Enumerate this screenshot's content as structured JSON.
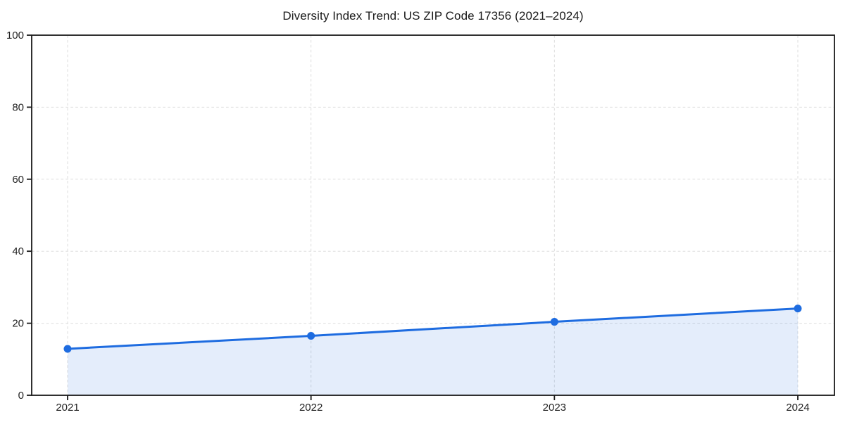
{
  "page": {
    "background": "#ffffff"
  },
  "chart_data": {
    "type": "line",
    "title": "Diversity Index Trend: US ZIP Code 17356 (2021–2024)",
    "x": [
      2021,
      2022,
      2023,
      2024
    ],
    "series": [
      {
        "name": "Diversity Index",
        "values": [
          12.9,
          16.5,
          20.4,
          24.1
        ]
      }
    ],
    "xlabel": "",
    "ylabel": "",
    "ylim": [
      0,
      100
    ],
    "yticks": [
      0,
      20,
      40,
      60,
      80,
      100
    ],
    "xtick_labels": [
      "2021",
      "2022",
      "2023",
      "2024"
    ],
    "grid": "dashed-both-axes",
    "legend": "none",
    "area_fill_to_zero": true,
    "marker": "circle",
    "colors": {
      "line": "#1e6ce0",
      "marker": "#1e6ce0",
      "area_fill_effective": "#e6eefb",
      "grid": "#dddddd",
      "spine": "#1a1a1a",
      "tick_text": "#222222",
      "title_text": "#1a1a1a"
    }
  }
}
